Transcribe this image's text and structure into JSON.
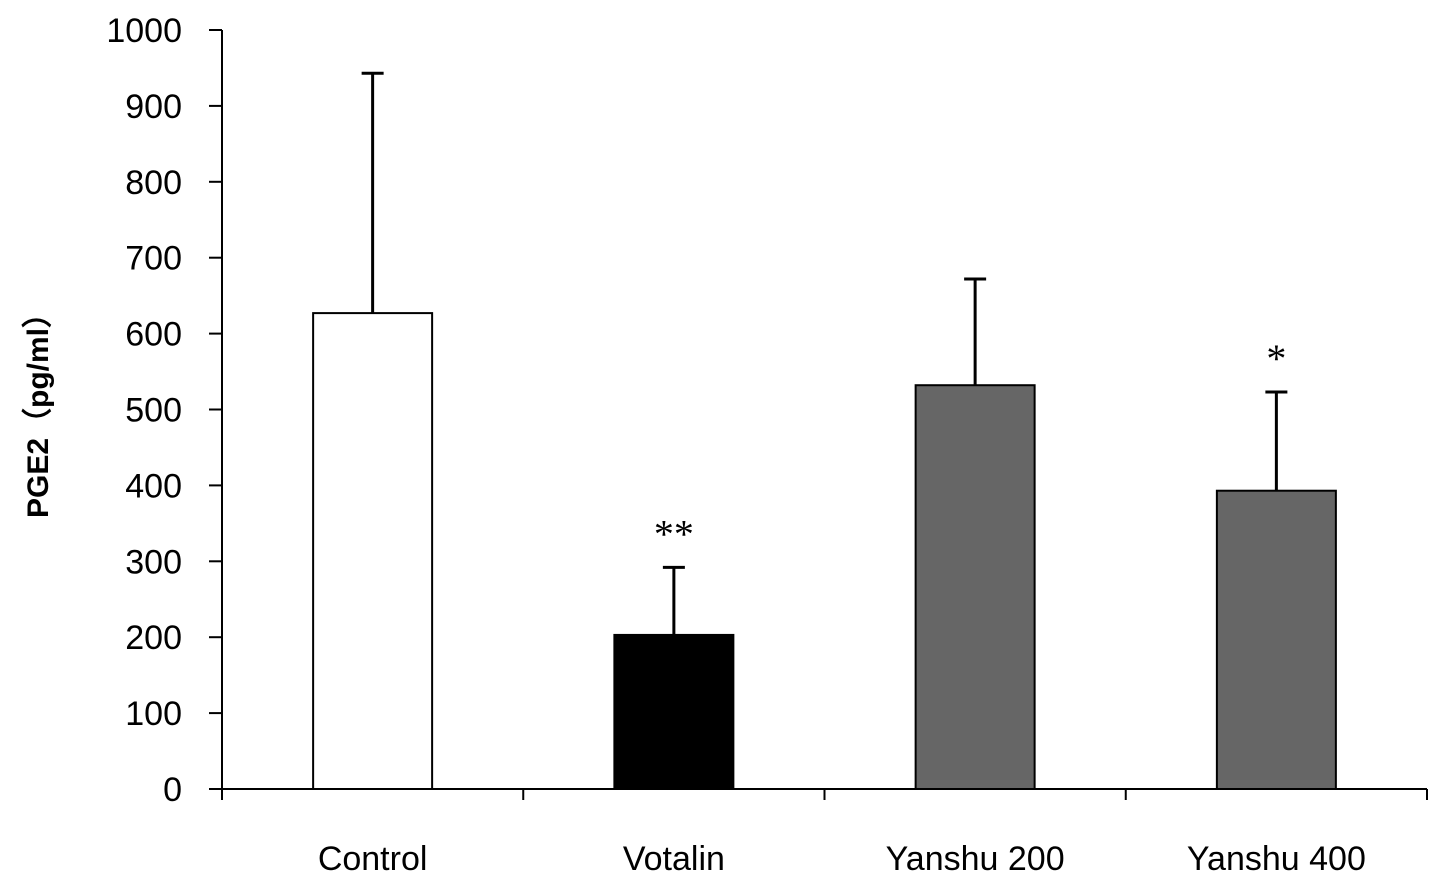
{
  "chart_data": {
    "type": "bar",
    "title": "",
    "xlabel": "",
    "ylabel": "PGE2（pg/ml）",
    "ylim": [
      0,
      1000
    ],
    "yticks": [
      0,
      100,
      200,
      300,
      400,
      500,
      600,
      700,
      800,
      900,
      1000
    ],
    "grid": false,
    "legend": "none",
    "categories": [
      "Control",
      "Votalin",
      "Yanshu 200",
      "Yanshu 400"
    ],
    "values": [
      627,
      203,
      532,
      393
    ],
    "error_upper": [
      316,
      89,
      140,
      130
    ],
    "significance": [
      "",
      "**",
      "",
      "*"
    ],
    "colors": [
      "#ffffff",
      "#000000",
      "#666666",
      "#666666"
    ]
  }
}
